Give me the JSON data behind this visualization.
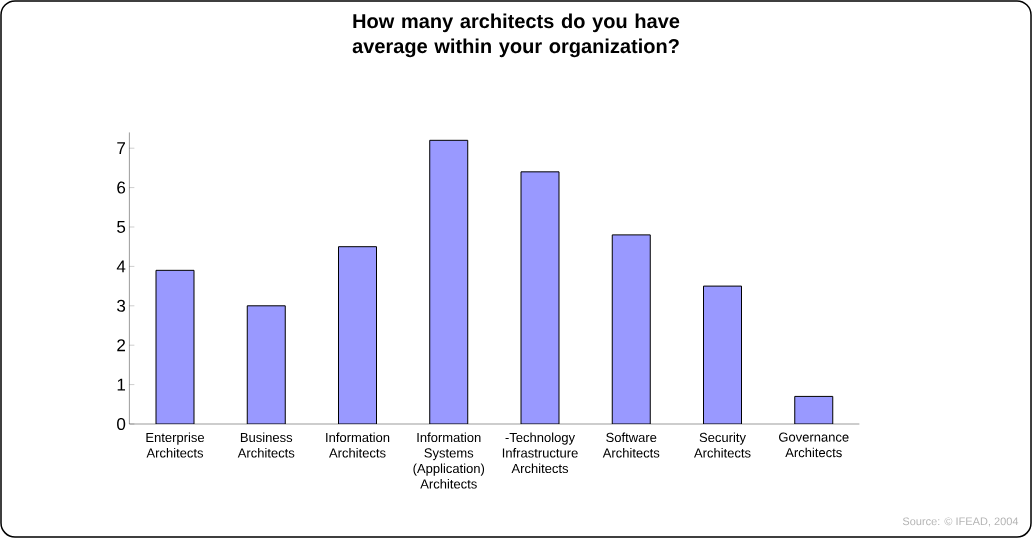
{
  "chart_data": {
    "type": "bar",
    "title": "How many architects do you have average within your organization?",
    "categories": [
      "Enterprise Architects",
      "Business Architects",
      "Information Architects",
      "Information Systems (Application) Architects",
      "-Technology Infrastructure Architects",
      "Software Architects",
      "Security Architects",
      "Governance Architects"
    ],
    "values": [
      3.9,
      3.0,
      4.5,
      7.2,
      6.4,
      4.8,
      3.5,
      0.7
    ],
    "color": "#9999ff",
    "ylim": [
      0,
      7.4
    ],
    "yticks": [
      0,
      1,
      2,
      3,
      4,
      5,
      6,
      7
    ],
    "annotations": [
      "Source: © IFEAD, 2004"
    ]
  }
}
